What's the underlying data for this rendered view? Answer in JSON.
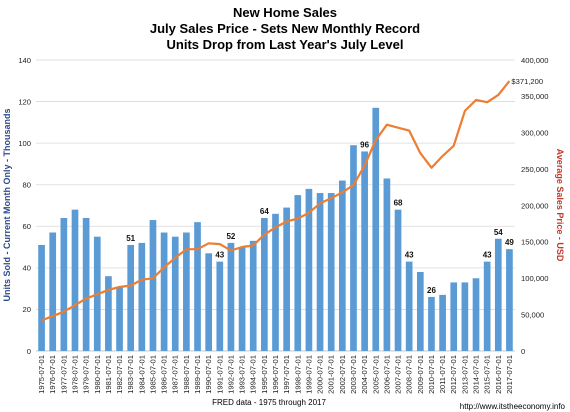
{
  "titles": [
    "New Home Sales",
    "July Sales Price - Sets New Monthly Record",
    "Units Drop from Last Year's July Level"
  ],
  "source_note": "FRED data - 1975 through 2017",
  "website": "http://www.itstheeconomy.info",
  "colors": {
    "bar": "#5b9bd5",
    "line": "#ed7d31",
    "ylabel_left": "#2e4b8c",
    "ylabel_right": "#c0392b"
  },
  "chart_data": {
    "type": "bar+line",
    "title": "New Home Sales",
    "xlabel": "FRED data - 1975 through 2017",
    "ylabel": "Units Sold - Current Month Only - Thousands",
    "y2label": "Average Sales Price - USD",
    "ylim": [
      0,
      140
    ],
    "y2lim": [
      0,
      400000
    ],
    "yticks": [
      0,
      20,
      40,
      60,
      80,
      100,
      120,
      140
    ],
    "y2ticks": [
      "0",
      "50,000",
      "100,000",
      "150,000",
      "200,000",
      "250,000",
      "300,000",
      "350,000",
      "400,000"
    ],
    "y2tick_values": [
      0,
      50000,
      100000,
      150000,
      200000,
      250000,
      300000,
      350000,
      400000
    ],
    "grid": true,
    "categories": [
      "1975-07-01",
      "1976-07-01",
      "1977-07-01",
      "1978-07-01",
      "1979-07-01",
      "1980-07-01",
      "1981-07-01",
      "1982-07-01",
      "1983-07-01",
      "1984-07-01",
      "1985-07-01",
      "1986-07-01",
      "1987-07-01",
      "1988-07-01",
      "1989-07-01",
      "1990-07-01",
      "1991-07-01",
      "1992-07-01",
      "1993-07-01",
      "1994-07-01",
      "1995-07-01",
      "1996-07-01",
      "1997-07-01",
      "1998-07-01",
      "1999-07-01",
      "2000-07-01",
      "2001-07-01",
      "2002-07-01",
      "2003-07-01",
      "2004-07-01",
      "2005-07-01",
      "2006-07-01",
      "2007-07-01",
      "2008-07-01",
      "2009-07-01",
      "2010-07-01",
      "2011-07-01",
      "2012-07-01",
      "2013-07-01",
      "2014-07-01",
      "2015-07-01",
      "2016-07-01",
      "2017-07-01"
    ],
    "series": [
      {
        "type": "bar",
        "axis": "left",
        "values": [
          51,
          57,
          64,
          68,
          64,
          55,
          36,
          31,
          51,
          52,
          63,
          57,
          55,
          57,
          62,
          47,
          43,
          52,
          50,
          53,
          64,
          66,
          69,
          75,
          78,
          76,
          76,
          82,
          99,
          96,
          117,
          83,
          68,
          43,
          38,
          26,
          27,
          33,
          33,
          35,
          43,
          54,
          49
        ]
      },
      {
        "type": "line",
        "axis": "right",
        "values": [
          42000,
          48000,
          54000,
          63000,
          72000,
          78000,
          84000,
          88000,
          90000,
          98000,
          100000,
          115000,
          128000,
          140000,
          140000,
          148000,
          147000,
          138000,
          143000,
          145000,
          160000,
          170000,
          178000,
          182000,
          190000,
          203000,
          210000,
          218000,
          228000,
          255000,
          290000,
          311000,
          307000,
          303000,
          272000,
          252000,
          268000,
          282000,
          330000,
          345000,
          342000,
          352000,
          371200
        ]
      }
    ],
    "data_labels": [
      {
        "index": 8,
        "text": "51"
      },
      {
        "index": 17,
        "text": "52"
      },
      {
        "index": 16,
        "text": "43"
      },
      {
        "index": 20,
        "text": "64"
      },
      {
        "index": 29,
        "text": "96"
      },
      {
        "index": 32,
        "text": "68"
      },
      {
        "index": 33,
        "text": "43"
      },
      {
        "index": 35,
        "text": "26"
      },
      {
        "index": 40,
        "text": "43"
      },
      {
        "index": 41,
        "text": "54"
      },
      {
        "index": 42,
        "text": "49"
      }
    ],
    "line_end_label": "$371,200"
  }
}
